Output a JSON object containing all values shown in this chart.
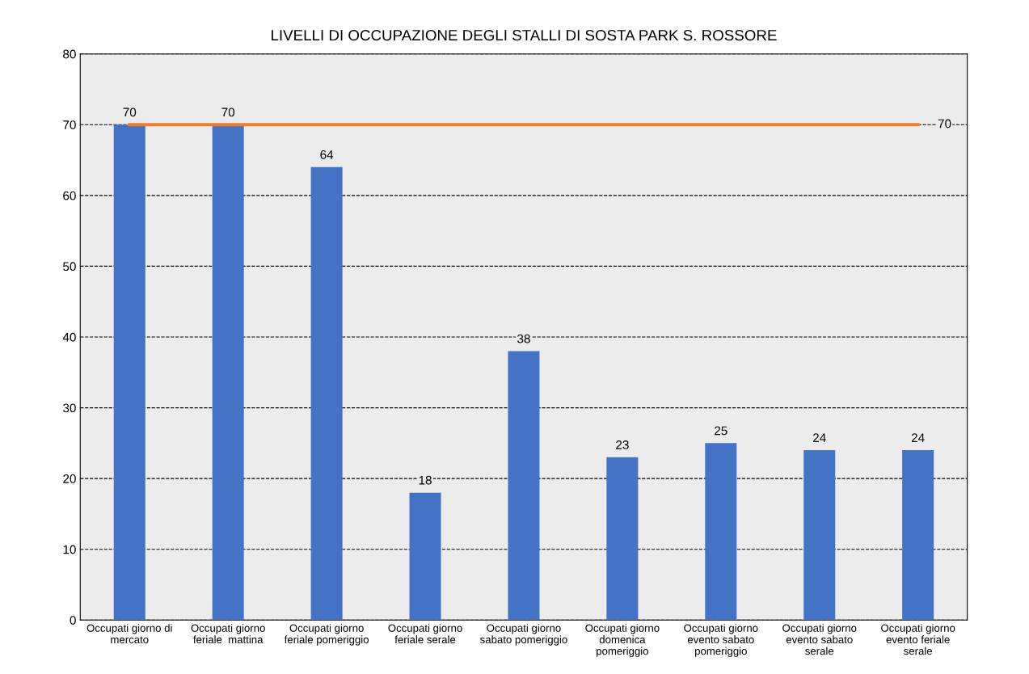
{
  "chart_data": {
    "type": "bar",
    "title": "LIVELLI DI OCCUPAZIONE DEGLI STALLI DI SOSTA PARK S. ROSSORE",
    "categories": [
      "Occupati giorno di\nmercato",
      "Occupati giorno\nferiale  mattina",
      "Occupati giorno\nferiale pomeriggio",
      "Occupati giorno\nferiale serale",
      "Occupati giorno\nsabato pomeriggio",
      "Occupati giorno\ndomenica\npomeriggio",
      "Occupati giorno\nevento sabato\npomeriggio",
      "Occupati giorno\nevento sabato\nserale",
      "Occupati giorno\nevento feriale\nserale"
    ],
    "series": [
      {
        "color": "#4472c4",
        "values": [
          70,
          70,
          64,
          18,
          38,
          23,
          25,
          24,
          24
        ],
        "value_labels": [
          "70",
          "70",
          "64",
          "18",
          "38",
          "23",
          "25",
          "24",
          "24"
        ]
      },
      {
        "type": "line",
        "color": "#ed7d31",
        "values": [
          70,
          70,
          70,
          70,
          70,
          70,
          70,
          70,
          70
        ],
        "value_labels": [
          null,
          null,
          null,
          null,
          null,
          null,
          null,
          null,
          "70"
        ]
      }
    ],
    "ylim": [
      0,
      80
    ],
    "yticks": [
      0,
      10,
      20,
      30,
      40,
      50,
      60,
      70,
      80
    ],
    "grid": "y"
  }
}
